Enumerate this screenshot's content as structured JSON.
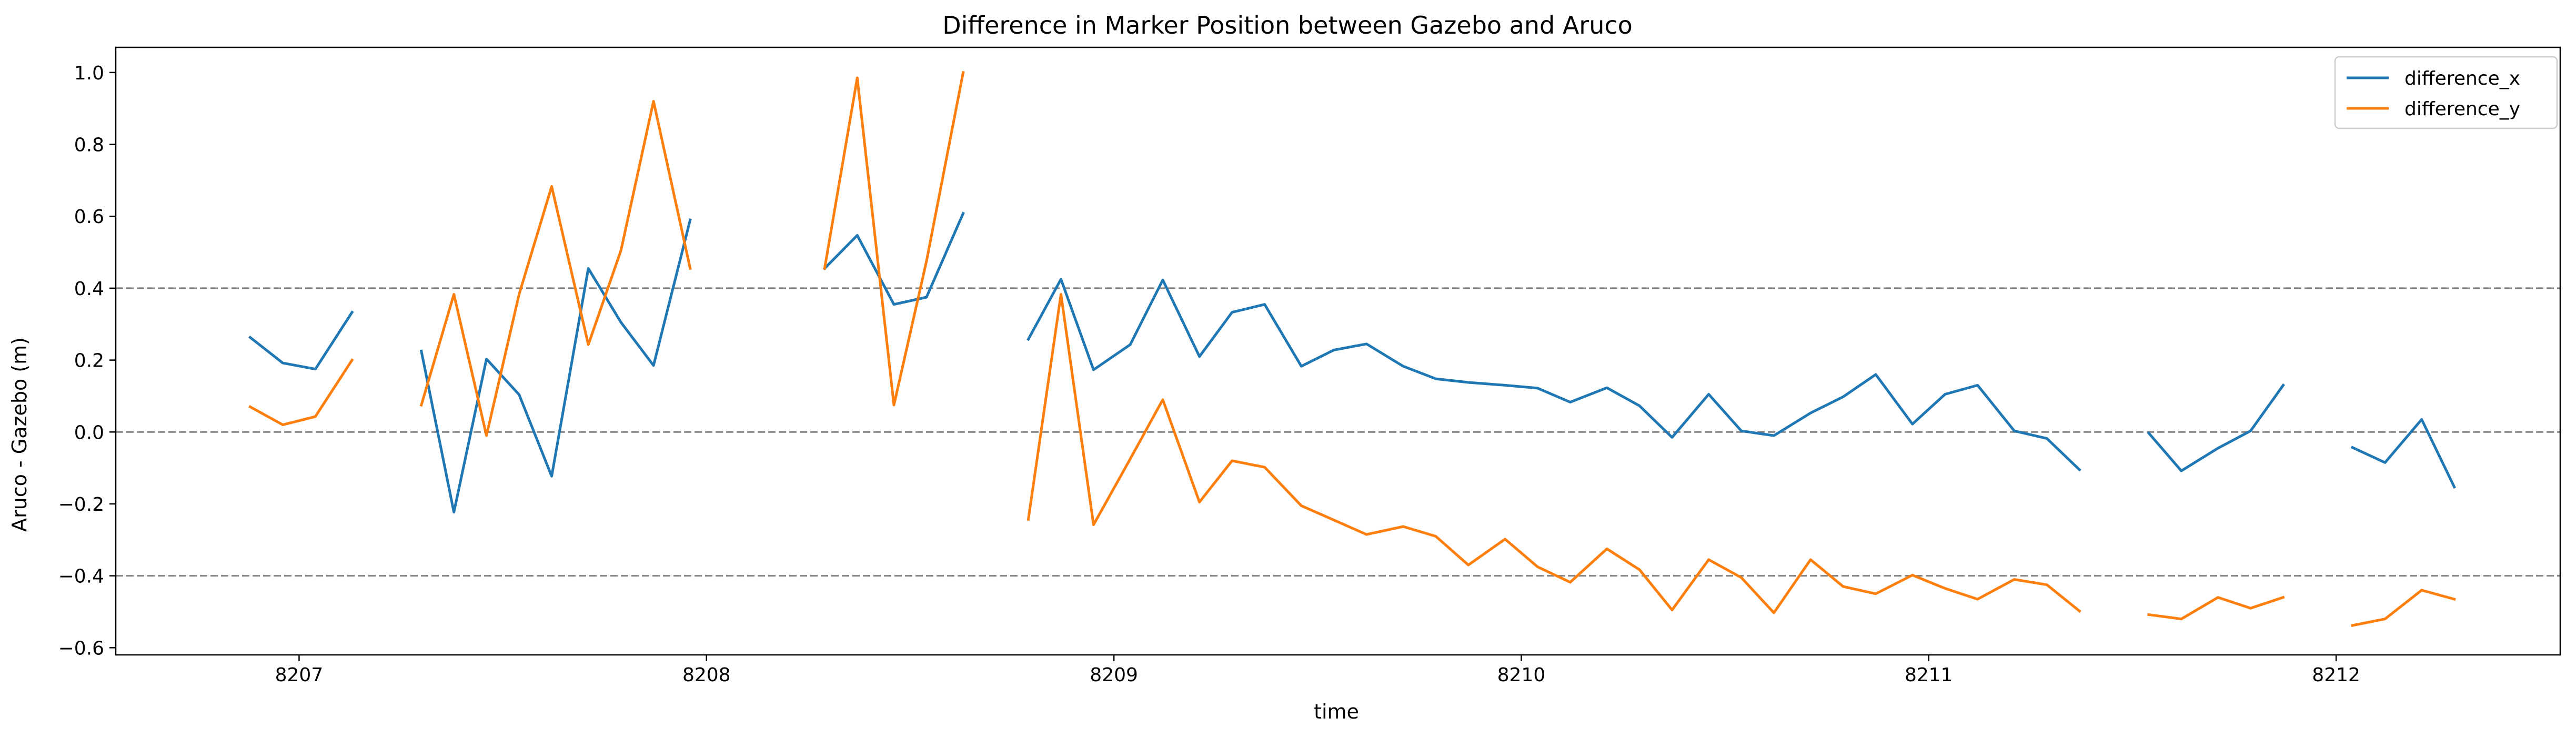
{
  "chart_data": {
    "type": "line",
    "title": "Difference in Marker Position between Gazebo and Aruco",
    "xlabel": "time",
    "ylabel": "Aruco - Gazebo (m)",
    "xlim": [
      8206.55,
      8212.55
    ],
    "ylim": [
      -0.62,
      1.07
    ],
    "xticks": [
      8207,
      8208,
      8209,
      8210,
      8211,
      8212
    ],
    "yticks": [
      -0.6,
      -0.4,
      -0.2,
      0.0,
      0.2,
      0.4,
      0.6,
      0.8,
      1.0
    ],
    "ytick_labels": [
      "−0.6",
      "−0.4",
      "−0.2",
      "0.0",
      "0.2",
      "0.4",
      "0.6",
      "0.8",
      "1.0"
    ],
    "hlines": [
      0.4,
      0.0,
      -0.4
    ],
    "legend_position": "top-right",
    "colors": {
      "difference_x": "#1f77b4",
      "difference_y": "#ff7f0e",
      "hline": "#808080"
    },
    "series": [
      {
        "name": "difference_x",
        "color": "#1f77b4",
        "segments": [
          [
            [
              8206.88,
              0.263
            ],
            [
              8206.96,
              0.192
            ],
            [
              8207.04,
              0.175
            ],
            [
              8207.13,
              0.333
            ]
          ],
          [
            [
              8207.3,
              0.225
            ],
            [
              8207.38,
              -0.223
            ],
            [
              8207.46,
              0.203
            ],
            [
              8207.54,
              0.104
            ],
            [
              8207.62,
              -0.123
            ],
            [
              8207.71,
              0.455
            ],
            [
              8207.79,
              0.305
            ],
            [
              8207.87,
              0.185
            ],
            [
              8207.96,
              0.59
            ]
          ],
          [
            [
              8208.29,
              0.455
            ],
            [
              8208.37,
              0.547
            ],
            [
              8208.46,
              0.355
            ],
            [
              8208.54,
              0.375
            ],
            [
              8208.63,
              0.608
            ]
          ],
          [
            [
              8208.79,
              0.258
            ],
            [
              8208.87,
              0.425
            ],
            [
              8208.95,
              0.173
            ],
            [
              8209.04,
              0.243
            ],
            [
              8209.12,
              0.423
            ],
            [
              8209.21,
              0.21
            ],
            [
              8209.29,
              0.333
            ],
            [
              8209.37,
              0.355
            ],
            [
              8209.46,
              0.183
            ],
            [
              8209.54,
              0.228
            ],
            [
              8209.62,
              0.245
            ],
            [
              8209.71,
              0.183
            ],
            [
              8209.79,
              0.148
            ],
            [
              8209.87,
              0.138
            ],
            [
              8209.96,
              0.13
            ],
            [
              8210.04,
              0.122
            ],
            [
              8210.12,
              0.083
            ],
            [
              8210.21,
              0.123
            ],
            [
              8210.29,
              0.073
            ],
            [
              8210.37,
              -0.015
            ],
            [
              8210.46,
              0.105
            ],
            [
              8210.54,
              0.003
            ],
            [
              8210.62,
              -0.01
            ],
            [
              8210.71,
              0.053
            ],
            [
              8210.79,
              0.098
            ],
            [
              8210.87,
              0.16
            ],
            [
              8210.96,
              0.022
            ],
            [
              8211.04,
              0.105
            ],
            [
              8211.12,
              0.13
            ],
            [
              8211.21,
              0.003
            ],
            [
              8211.29,
              -0.018
            ],
            [
              8211.37,
              -0.105
            ]
          ],
          [
            [
              8211.54,
              -0.003
            ],
            [
              8211.62,
              -0.108
            ],
            [
              8211.71,
              -0.045
            ],
            [
              8211.79,
              0.003
            ],
            [
              8211.87,
              0.13
            ]
          ],
          [
            [
              8212.04,
              -0.043
            ],
            [
              8212.12,
              -0.085
            ],
            [
              8212.21,
              0.035
            ],
            [
              8212.29,
              -0.153
            ]
          ]
        ]
      },
      {
        "name": "difference_y",
        "color": "#ff7f0e",
        "segments": [
          [
            [
              8206.88,
              0.07
            ],
            [
              8206.96,
              0.02
            ],
            [
              8207.04,
              0.043
            ],
            [
              8207.13,
              0.2
            ]
          ],
          [
            [
              8207.3,
              0.075
            ],
            [
              8207.38,
              0.383
            ],
            [
              8207.46,
              -0.01
            ],
            [
              8207.54,
              0.383
            ],
            [
              8207.62,
              0.683
            ],
            [
              8207.71,
              0.243
            ],
            [
              8207.79,
              0.505
            ],
            [
              8207.87,
              0.92
            ],
            [
              8207.96,
              0.455
            ]
          ],
          [
            [
              8208.29,
              0.455
            ],
            [
              8208.37,
              0.985
            ],
            [
              8208.46,
              0.075
            ],
            [
              8208.54,
              0.475
            ],
            [
              8208.63,
              1.0
            ]
          ],
          [
            [
              8208.79,
              -0.243
            ],
            [
              8208.87,
              0.383
            ],
            [
              8208.95,
              -0.258
            ],
            [
              8209.04,
              -0.075
            ],
            [
              8209.12,
              0.09
            ],
            [
              8209.21,
              -0.195
            ],
            [
              8209.29,
              -0.08
            ],
            [
              8209.37,
              -0.098
            ],
            [
              8209.46,
              -0.205
            ],
            [
              8209.54,
              -0.245
            ],
            [
              8209.62,
              -0.285
            ],
            [
              8209.71,
              -0.263
            ],
            [
              8209.79,
              -0.29
            ],
            [
              8209.87,
              -0.37
            ],
            [
              8209.96,
              -0.298
            ],
            [
              8210.04,
              -0.375
            ],
            [
              8210.12,
              -0.418
            ],
            [
              8210.21,
              -0.325
            ],
            [
              8210.29,
              -0.383
            ],
            [
              8210.37,
              -0.495
            ],
            [
              8210.46,
              -0.355
            ],
            [
              8210.54,
              -0.405
            ],
            [
              8210.62,
              -0.503
            ],
            [
              8210.71,
              -0.355
            ],
            [
              8210.79,
              -0.43
            ],
            [
              8210.87,
              -0.45
            ],
            [
              8210.96,
              -0.398
            ],
            [
              8211.04,
              -0.435
            ],
            [
              8211.12,
              -0.465
            ],
            [
              8211.21,
              -0.41
            ],
            [
              8211.29,
              -0.425
            ],
            [
              8211.37,
              -0.498
            ]
          ],
          [
            [
              8211.54,
              -0.508
            ],
            [
              8211.62,
              -0.52
            ],
            [
              8211.71,
              -0.46
            ],
            [
              8211.79,
              -0.49
            ],
            [
              8211.87,
              -0.46
            ]
          ],
          [
            [
              8212.04,
              -0.538
            ],
            [
              8212.12,
              -0.52
            ],
            [
              8212.21,
              -0.44
            ],
            [
              8212.29,
              -0.465
            ]
          ]
        ]
      }
    ]
  }
}
